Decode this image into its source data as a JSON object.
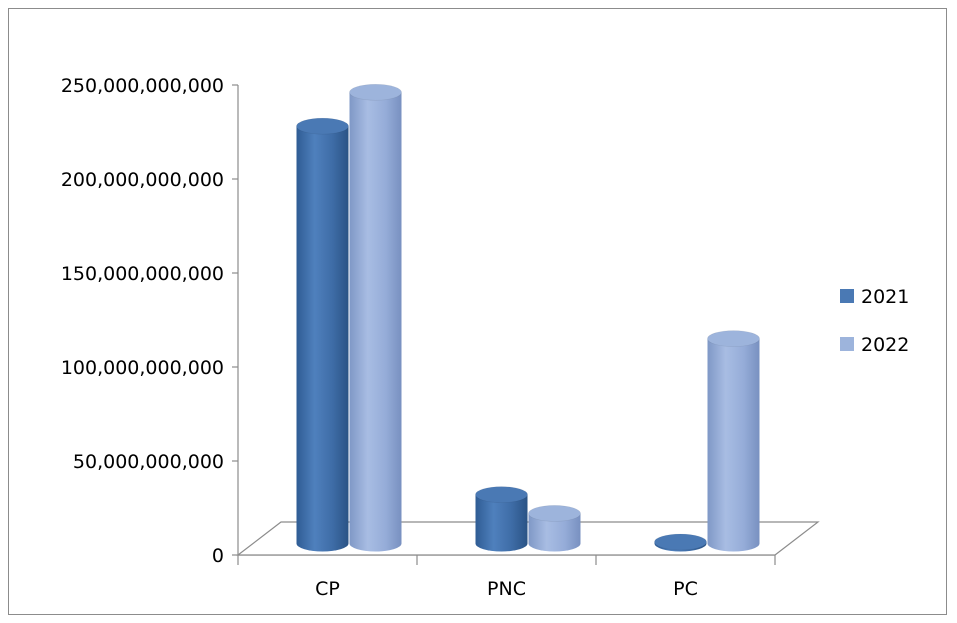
{
  "chart_data": {
    "type": "bar",
    "categories": [
      "CP",
      "PNC",
      "PC"
    ],
    "series": [
      {
        "name": "2021",
        "values": [
          222000000000,
          26000000000,
          800000000
        ],
        "color": "#4a79b4"
      },
      {
        "name": "2022",
        "values": [
          240000000000,
          16000000000,
          109000000000
        ],
        "color": "#9db4dc"
      }
    ],
    "yticks": [
      "0",
      "50,000,000,000",
      "100,000,000,000",
      "150,000,000,000",
      "200,000,000,000",
      "250,000,000,000"
    ],
    "ylim": [
      0,
      250000000000
    ],
    "legend_position": "right",
    "style": "3d-cylinder"
  }
}
